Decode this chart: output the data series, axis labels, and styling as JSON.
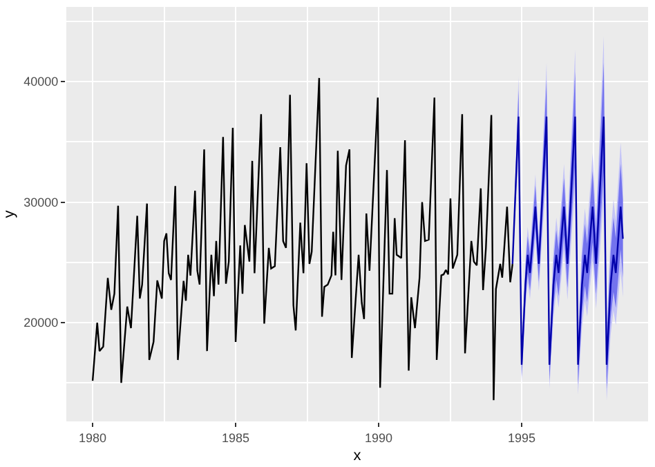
{
  "chart_data": {
    "type": "line",
    "xlabel": "x",
    "ylabel": "y",
    "xlim": [
      1979.08,
      1999.42
    ],
    "ylim": [
      11800,
      46200
    ],
    "xticks": [
      1980,
      1985,
      1990,
      1995
    ],
    "yticks": [
      20000,
      30000,
      40000
    ],
    "grid": true,
    "line_style": "solid",
    "marker": "none",
    "series": [
      {
        "type": "area",
        "color": "#c4c4f7",
        "x": [
          1994.68,
          1994.89,
          1995.0,
          1995.13,
          1995.21,
          1995.29,
          1995.48,
          1995.6,
          1995.87,
          1995.97,
          1996.11,
          1996.21,
          1996.29,
          1996.48,
          1996.6,
          1996.87,
          1996.97,
          1997.11,
          1997.21,
          1997.29,
          1997.48,
          1997.6,
          1997.87,
          1997.97,
          1998.11,
          1998.21,
          1998.29,
          1998.46,
          1998.54
        ],
        "values": [
          null,
          null,
          null,
          null,
          null,
          null,
          null,
          null,
          null,
          null,
          null,
          null,
          null,
          null,
          null,
          null,
          null,
          null,
          null,
          null,
          null,
          null,
          null,
          null,
          null,
          null,
          null,
          null,
          null
        ],
        "lower": [
          24870,
          33760,
          15020,
          21070,
          23320,
          21950,
          26950,
          22630,
          32650,
          14520,
          20370,
          22550,
          21230,
          26070,
          21890,
          31530,
          14020,
          19680,
          21790,
          20500,
          25180,
          21140,
          30420,
          13530,
          18980,
          21020,
          19780,
          24290,
          22110
        ],
        "upper": [
          24870,
          40440,
          17990,
          25230,
          27940,
          26290,
          32290,
          27110,
          41550,
          18480,
          25930,
          28710,
          27010,
          33170,
          27850,
          42670,
          18980,
          26620,
          29470,
          27740,
          34060,
          28600,
          43780,
          19470,
          27320,
          30240,
          28460,
          34950,
          31810
        ]
      },
      {
        "color": "#000000",
        "x": [
          1980.0,
          1980.16,
          1980.24,
          1980.37,
          1980.53,
          1980.65,
          1980.76,
          1980.89,
          1981.0,
          1981.21,
          1981.34,
          1981.56,
          1981.65,
          1981.73,
          1981.9,
          1981.98,
          1982.13,
          1982.26,
          1982.42,
          1982.5,
          1982.58,
          1982.66,
          1982.74,
          1982.89,
          1982.98,
          1983.18,
          1983.26,
          1983.34,
          1983.42,
          1983.58,
          1983.66,
          1983.74,
          1983.9,
          1984.0,
          1984.15,
          1984.24,
          1984.32,
          1984.4,
          1984.56,
          1984.66,
          1984.76,
          1984.9,
          1985.0,
          1985.16,
          1985.24,
          1985.32,
          1985.48,
          1985.58,
          1985.66,
          1985.89,
          1986.0,
          1986.16,
          1986.24,
          1986.37,
          1986.56,
          1986.66,
          1986.76,
          1986.9,
          1987.02,
          1987.1,
          1987.26,
          1987.37,
          1987.48,
          1987.58,
          1987.66,
          1987.92,
          1988.02,
          1988.1,
          1988.22,
          1988.35,
          1988.41,
          1988.49,
          1988.57,
          1988.7,
          1988.86,
          1988.98,
          1989.06,
          1989.3,
          1989.41,
          1989.49,
          1989.57,
          1989.68,
          1989.97,
          1990.05,
          1990.29,
          1990.38,
          1990.48,
          1990.56,
          1990.63,
          1990.79,
          1990.92,
          1991.05,
          1991.14,
          1991.27,
          1991.43,
          1991.52,
          1991.62,
          1991.75,
          1991.95,
          1992.03,
          1992.19,
          1992.27,
          1992.35,
          1992.43,
          1992.51,
          1992.59,
          1992.75,
          1992.92,
          1993.02,
          1993.24,
          1993.33,
          1993.43,
          1993.57,
          1993.65,
          1993.75,
          1993.94,
          1994.02,
          1994.1,
          1994.25,
          1994.32,
          1994.49,
          1994.6,
          1994.68
        ],
        "values": [
          15170,
          20000,
          17640,
          18000,
          23700,
          21060,
          22400,
          29700,
          15000,
          21330,
          19540,
          28860,
          22000,
          23150,
          29880,
          16900,
          18400,
          23500,
          22000,
          26770,
          27400,
          24100,
          23540,
          31330,
          16900,
          23460,
          21820,
          25630,
          23900,
          30950,
          24300,
          23160,
          34370,
          17640,
          25630,
          22200,
          26770,
          23160,
          35400,
          23230,
          25060,
          36160,
          18400,
          26400,
          22400,
          28100,
          25060,
          33420,
          24100,
          37300,
          19920,
          26200,
          24490,
          24680,
          34560,
          26770,
          26200,
          38900,
          21440,
          19350,
          28290,
          24100,
          33230,
          24870,
          25890,
          40300,
          20490,
          22970,
          23150,
          23920,
          27530,
          23920,
          34260,
          23540,
          33040,
          34370,
          17070,
          25630,
          21630,
          20300,
          29050,
          24300,
          38670,
          14600,
          32660,
          22400,
          22400,
          28670,
          25630,
          25360,
          35130,
          16010,
          22100,
          19540,
          23730,
          30000,
          26770,
          26880,
          38670,
          16900,
          23920,
          24000,
          24370,
          24000,
          30300,
          24490,
          25630,
          37300,
          17450,
          26770,
          25060,
          24750,
          31140,
          22700,
          26200,
          37220,
          13570,
          22780,
          24870,
          23730,
          29620,
          23350,
          24870
        ]
      },
      {
        "type": "area",
        "color": "#7373ee",
        "x": [
          1994.68,
          1994.89,
          1995.0,
          1995.13,
          1995.21,
          1995.29,
          1995.48,
          1995.6,
          1995.87,
          1995.97,
          1996.11,
          1996.21,
          1996.29,
          1996.48,
          1996.6,
          1996.87,
          1996.97,
          1997.11,
          1997.21,
          1997.29,
          1997.48,
          1997.6,
          1997.87,
          1997.97,
          1998.11,
          1998.21,
          1998.29,
          1998.46,
          1998.54
        ],
        "values": [
          null,
          null,
          null,
          null,
          null,
          null,
          null,
          null,
          null,
          null,
          null,
          null,
          null,
          null,
          null,
          null,
          null,
          null,
          null,
          null,
          null,
          null,
          null,
          null,
          null,
          null,
          null,
          null,
          null
        ],
        "lower": [
          24870,
          34870,
          15510,
          21760,
          24090,
          22670,
          27840,
          23380,
          34130,
          15180,
          21300,
          23580,
          22190,
          27250,
          22880,
          33390,
          14850,
          20830,
          23070,
          21710,
          26660,
          22380,
          32650,
          14520,
          20370,
          22550,
          21230,
          26070,
          23720
        ],
        "upper": [
          24870,
          39330,
          17490,
          24540,
          27170,
          25570,
          31400,
          26360,
          40070,
          17820,
          25000,
          27680,
          26050,
          31990,
          26860,
          40810,
          18150,
          25470,
          28190,
          26530,
          32580,
          27360,
          41550,
          18480,
          25930,
          28710,
          27010,
          33170,
          30200
        ]
      },
      {
        "color": "#0000aa",
        "x": [
          1994.68,
          1994.89,
          1995.0,
          1995.13,
          1995.21,
          1995.29,
          1995.48,
          1995.6,
          1995.87,
          1995.97,
          1996.11,
          1996.21,
          1996.29,
          1996.48,
          1996.6,
          1996.87,
          1996.97,
          1997.11,
          1997.21,
          1997.29,
          1997.48,
          1997.6,
          1997.87,
          1997.97,
          1998.11,
          1998.21,
          1998.29,
          1998.46,
          1998.54
        ],
        "values": [
          24870,
          37100,
          16500,
          23150,
          25630,
          24120,
          29620,
          24870,
          37100,
          16500,
          23150,
          25630,
          24120,
          29620,
          24870,
          37100,
          16500,
          23150,
          25630,
          24120,
          29620,
          24870,
          37100,
          16500,
          23150,
          25630,
          24120,
          29620,
          26960
        ]
      }
    ]
  }
}
